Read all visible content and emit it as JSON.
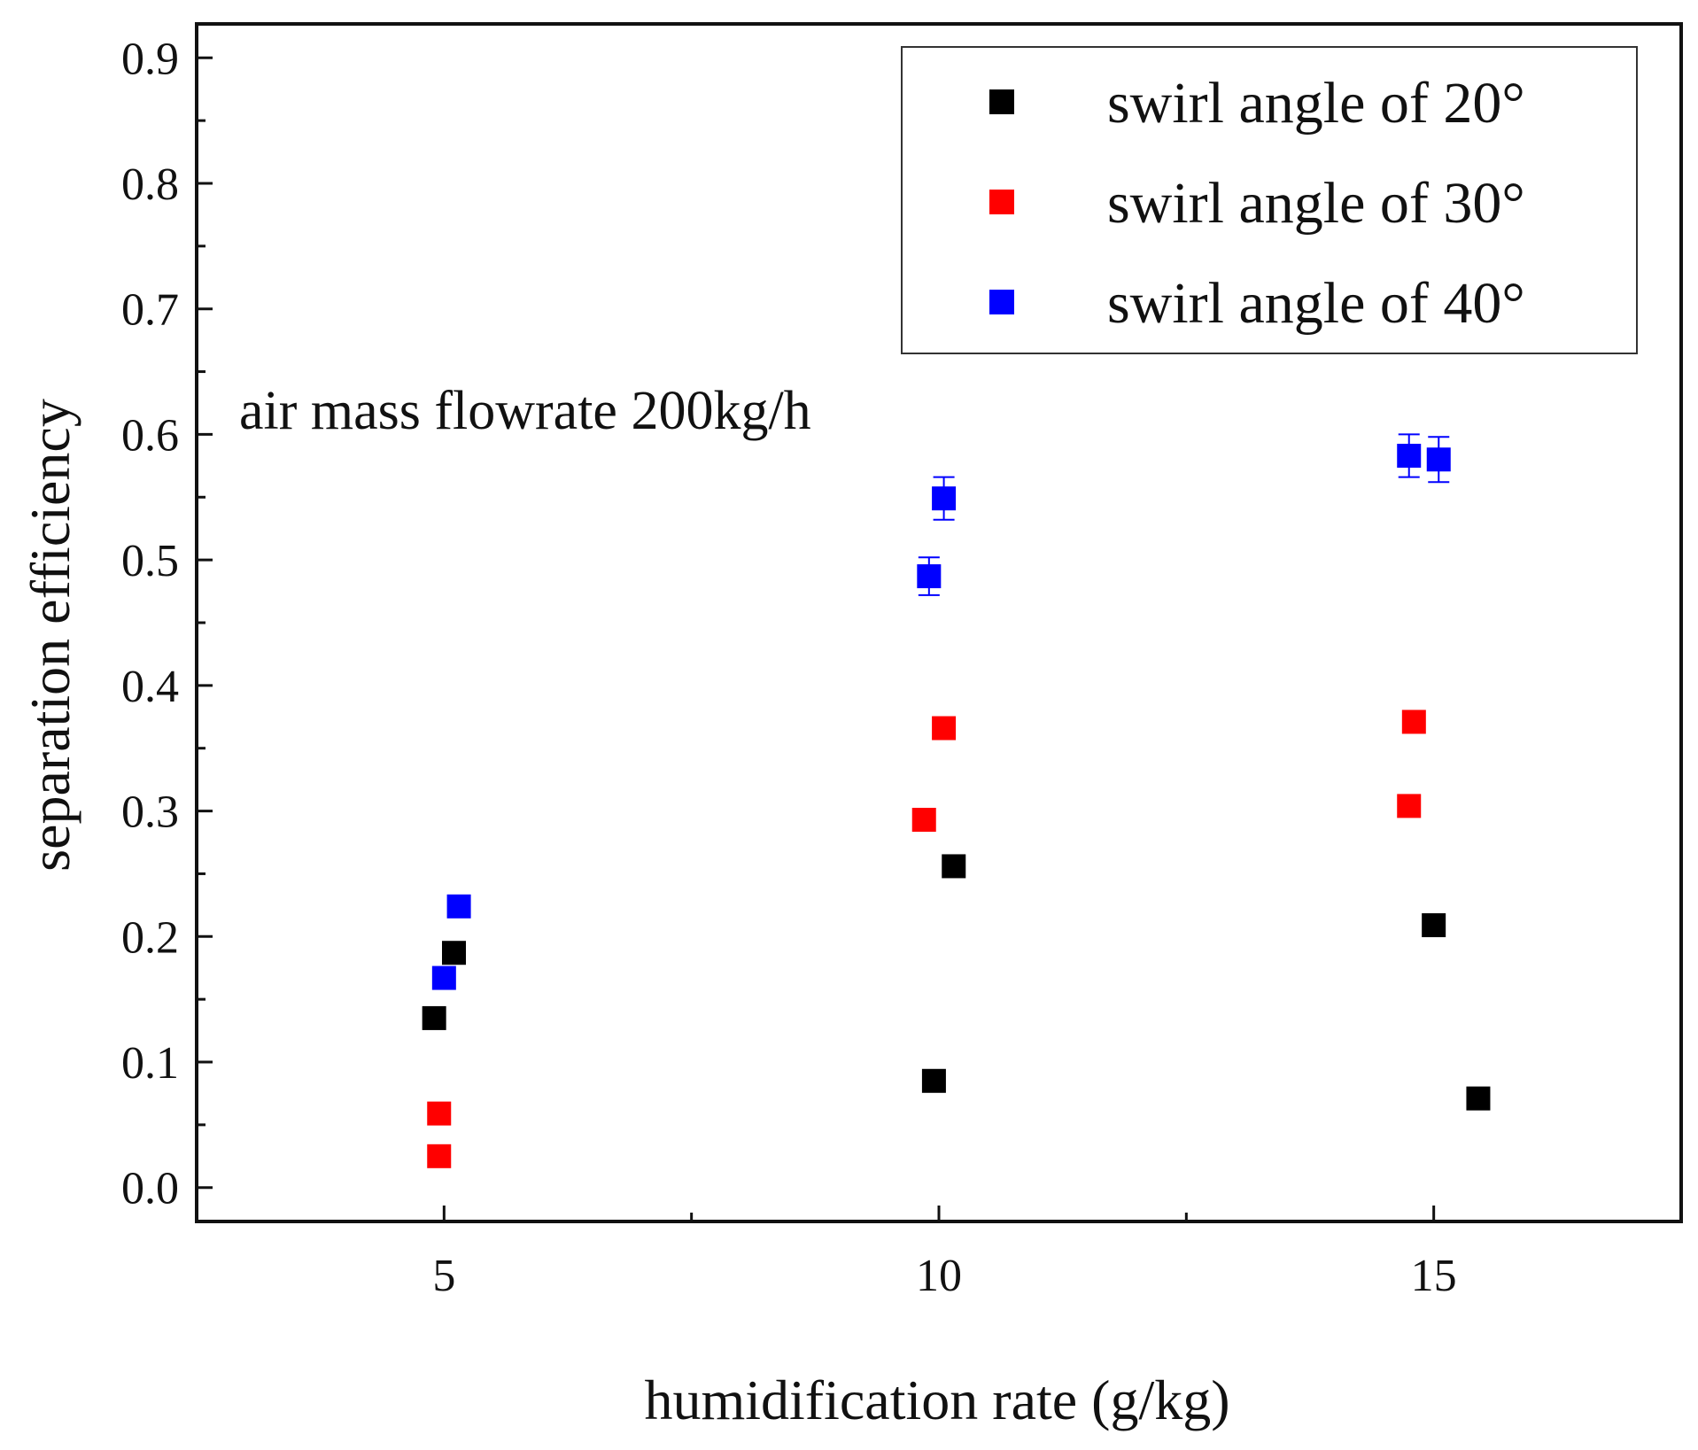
{
  "chart_data": {
    "type": "scatter",
    "title": "",
    "xlabel": "humidification rate (g/kg)",
    "ylabel": "separation efficiency",
    "xlim": [
      2.5,
      17.5
    ],
    "ylim": [
      -0.027,
      0.927
    ],
    "xticks": [
      5,
      10,
      15
    ],
    "xticks_minor": [
      7.5,
      12.5
    ],
    "yticks": [
      0.0,
      0.1,
      0.2,
      0.3,
      0.4,
      0.5,
      0.6,
      0.7,
      0.8,
      0.9
    ],
    "ytick_labels": [
      "0.0",
      "0.1",
      "0.2",
      "0.3",
      "0.4",
      "0.5",
      "0.6",
      "0.7",
      "0.8",
      "0.9"
    ],
    "legend_position": "top-right",
    "annotation": "air mass flowrate 200kg/h",
    "series": [
      {
        "name": "swirl angle of 20°",
        "color": "#000000",
        "points": [
          {
            "x": 4.9,
            "y": 0.135
          },
          {
            "x": 5.1,
            "y": 0.187
          },
          {
            "x": 9.95,
            "y": 0.085
          },
          {
            "x": 10.15,
            "y": 0.256
          },
          {
            "x": 15.0,
            "y": 0.209
          },
          {
            "x": 15.45,
            "y": 0.071
          }
        ]
      },
      {
        "name": "swirl angle of 30°",
        "color": "#ff0000",
        "points": [
          {
            "x": 4.95,
            "y": 0.059
          },
          {
            "x": 4.95,
            "y": 0.025
          },
          {
            "x": 9.85,
            "y": 0.293
          },
          {
            "x": 10.05,
            "y": 0.366
          },
          {
            "x": 14.75,
            "y": 0.304
          },
          {
            "x": 14.8,
            "y": 0.371
          }
        ]
      },
      {
        "name": "swirl angle of 40°",
        "color": "#0000ff",
        "points": [
          {
            "x": 5.15,
            "y": 0.224
          },
          {
            "x": 5.0,
            "y": 0.167
          },
          {
            "x": 9.9,
            "y": 0.487,
            "err": 0.015
          },
          {
            "x": 10.05,
            "y": 0.549,
            "err": 0.017
          },
          {
            "x": 14.75,
            "y": 0.583,
            "err": 0.017
          },
          {
            "x": 15.05,
            "y": 0.58,
            "err": 0.018
          }
        ]
      }
    ]
  }
}
